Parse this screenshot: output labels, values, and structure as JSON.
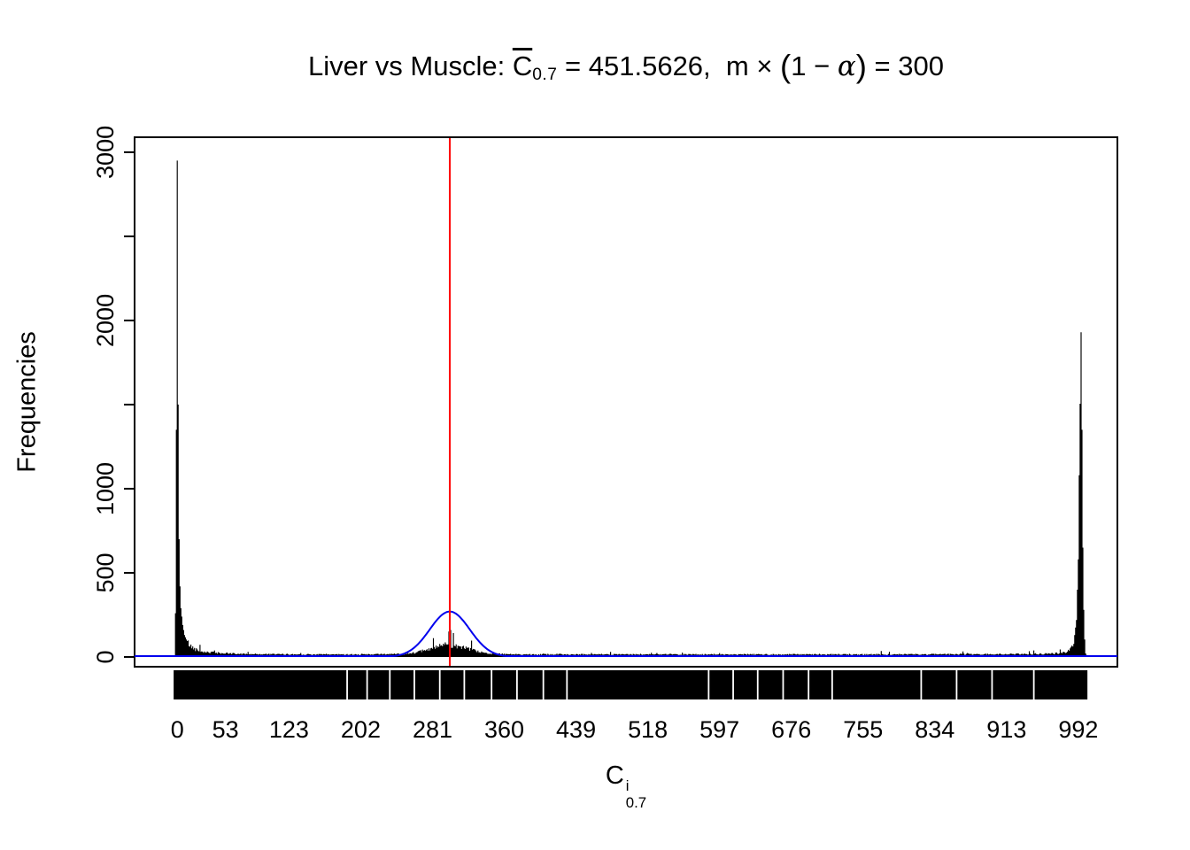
{
  "title": {
    "prefix": "Liver vs Muscle: ",
    "c_base": "C",
    "c_sub": "0.7",
    "eq": " = 451.5626,  m × ",
    "lp": "(",
    "one_minus": "1 − ",
    "alpha": "α",
    "rp": ")",
    "tail": " = 300"
  },
  "y_axis": {
    "label": "Frequencies"
  },
  "x_axis": {
    "label_base": "C",
    "label_sup": "i",
    "label_sub": "0.7"
  },
  "chart_data": {
    "type": "bar",
    "subtype": "histogram with normal density curve, vertical reference line and rug",
    "title": "Liver vs Muscle: C̄_0.7 = 451.5626, m × (1 − α) = 300",
    "xlabel": "C^i_0.7",
    "ylabel": "Frequencies",
    "xlim": [
      0,
      1000
    ],
    "ylim": [
      0,
      3000
    ],
    "grid": false,
    "x_ticks": [
      0,
      53,
      123,
      202,
      281,
      360,
      439,
      518,
      597,
      676,
      755,
      834,
      913,
      992
    ],
    "x_tick_labels": [
      "0",
      "53",
      "123",
      "202",
      "281",
      "360",
      "439",
      "518",
      "597",
      "676",
      "755",
      "834",
      "913",
      "992"
    ],
    "y_ticks": [
      0,
      500,
      1000,
      1500,
      2000,
      2500,
      3000
    ],
    "y_tick_labels": [
      "0",
      "500",
      "1000",
      "",
      "2000",
      "",
      "3000"
    ],
    "histogram": {
      "color": "#000000",
      "left_peak": {
        "x": 0,
        "frequency": 2950
      },
      "right_peak": {
        "x": 995,
        "frequency": 1930
      },
      "center_bump": {
        "x": 300,
        "frequency": 70
      },
      "baseline_frequency": 15,
      "envelope": [
        [
          -2,
          260
        ],
        [
          -1,
          1350
        ],
        [
          0,
          2950
        ],
        [
          1,
          1500
        ],
        [
          2,
          700
        ],
        [
          3,
          420
        ],
        [
          4,
          290
        ],
        [
          6,
          190
        ],
        [
          8,
          130
        ],
        [
          11,
          90
        ],
        [
          15,
          62
        ],
        [
          20,
          46
        ],
        [
          27,
          34
        ],
        [
          36,
          27
        ],
        [
          50,
          22
        ],
        [
          70,
          18
        ],
        [
          100,
          16
        ],
        [
          150,
          15
        ],
        [
          210,
          15
        ],
        [
          250,
          18
        ],
        [
          265,
          28
        ],
        [
          280,
          50
        ],
        [
          295,
          70
        ],
        [
          305,
          70
        ],
        [
          318,
          50
        ],
        [
          332,
          30
        ],
        [
          345,
          20
        ],
        [
          360,
          16
        ],
        [
          450,
          15
        ],
        [
          600,
          15
        ],
        [
          750,
          15
        ],
        [
          870,
          16
        ],
        [
          930,
          17
        ],
        [
          960,
          19
        ],
        [
          975,
          25
        ],
        [
          983,
          42
        ],
        [
          987,
          85
        ],
        [
          990,
          220
        ],
        [
          992,
          580
        ],
        [
          993,
          1080
        ],
        [
          995,
          1930
        ],
        [
          996,
          1350
        ],
        [
          997,
          650
        ],
        [
          998,
          280
        ],
        [
          999,
          95
        ],
        [
          1000,
          28
        ],
        [
          1001,
          10
        ]
      ],
      "noise": 0.5,
      "seed": 42
    },
    "density_curve": {
      "color": "#0000ee",
      "mean": 300,
      "sd": 22,
      "peak": 270
    },
    "vline": {
      "x": 300,
      "color": "#ff0000"
    },
    "rug": {
      "color": "#000000",
      "from": -4,
      "to": 1002,
      "gaps": [
        187,
        209,
        234,
        261,
        289,
        316,
        346,
        374,
        403,
        429,
        585,
        612,
        639,
        667,
        695,
        721,
        819,
        858,
        897,
        943
      ]
    }
  }
}
